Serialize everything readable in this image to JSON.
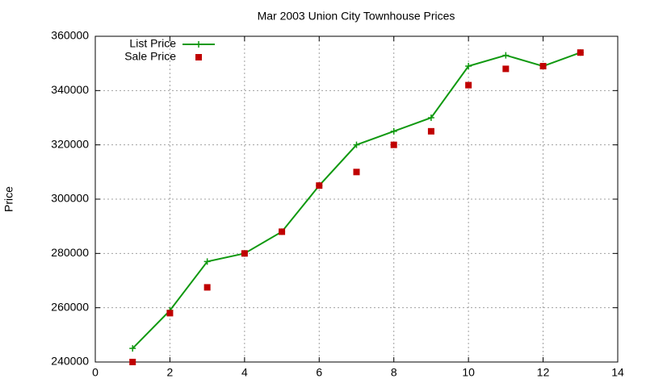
{
  "chart_data": {
    "type": "line",
    "title": "Mar 2003 Union City Townhouse Prices",
    "y_label": "Price",
    "x": [
      1,
      2,
      3,
      4,
      5,
      6,
      7,
      8,
      9,
      10,
      11,
      12,
      13
    ],
    "series": [
      {
        "name": "List Price",
        "color": "#109910",
        "style": "linespoints",
        "values": [
          245000,
          259000,
          277000,
          280000,
          288000,
          305000,
          320000,
          325000,
          330000,
          349000,
          353000,
          349000,
          354000
        ]
      },
      {
        "name": "Sale Price",
        "color": "#c00000",
        "style": "points",
        "values": [
          240000,
          258000,
          267500,
          280000,
          288000,
          305000,
          310000,
          320000,
          325000,
          342000,
          348000,
          349000,
          354000
        ]
      }
    ],
    "xlim": [
      0,
      14
    ],
    "xticks": [
      0,
      2,
      4,
      6,
      8,
      10,
      12,
      14
    ],
    "ylim": [
      240000,
      360000
    ],
    "yticks": [
      240000,
      260000,
      280000,
      300000,
      320000,
      340000,
      360000
    ],
    "grid": true,
    "legend": "top left"
  }
}
